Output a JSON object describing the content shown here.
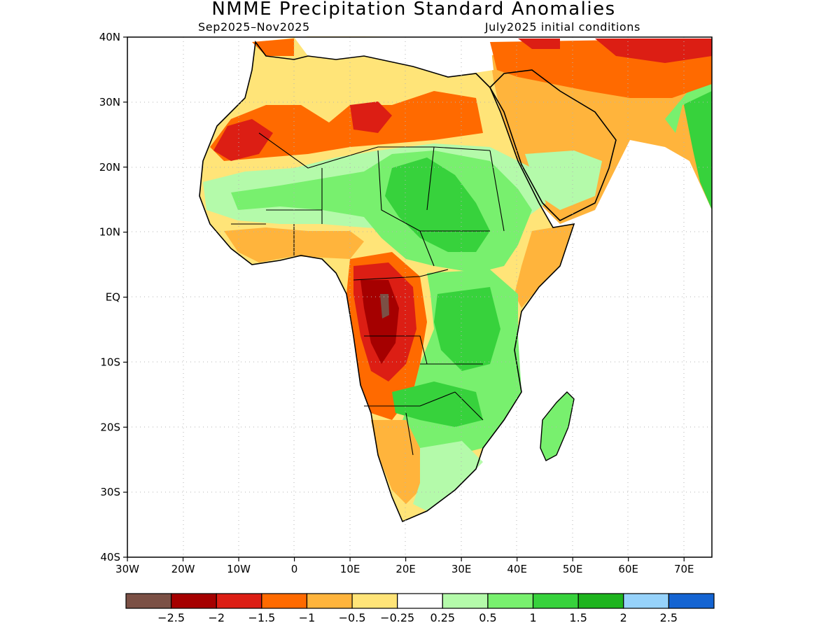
{
  "title": "NMME Precipitation Standard Anomalies",
  "subtitle_left": "Sep2025–Nov2025",
  "subtitle_right": "July2025 initial conditions",
  "lat_labels": [
    "40N",
    "30N",
    "20N",
    "10N",
    "EQ",
    "10S",
    "20S",
    "30S",
    "40S"
  ],
  "lon_labels": [
    "30W",
    "20W",
    "10W",
    "0",
    "10E",
    "20E",
    "30E",
    "40E",
    "50E",
    "60E",
    "70E"
  ],
  "colorbar": {
    "colors": [
      "#7b5045",
      "#a50000",
      "#dc1e14",
      "#ff6a00",
      "#ffb43c",
      "#ffe478",
      "#ffffff",
      "#b4faaa",
      "#78f06e",
      "#37d23c",
      "#1eb41e",
      "#96d2fa",
      "#1464d2"
    ],
    "labels": [
      "−2.5",
      "−2",
      "−1.5",
      "−1",
      "−0.5",
      "−0.25",
      "0.25",
      "0.5",
      "1",
      "1.5",
      "2",
      "2.5"
    ]
  },
  "map_extent": {
    "lon_min": -30,
    "lon_max": 75,
    "lat_min": -40,
    "lat_max": 40
  }
}
